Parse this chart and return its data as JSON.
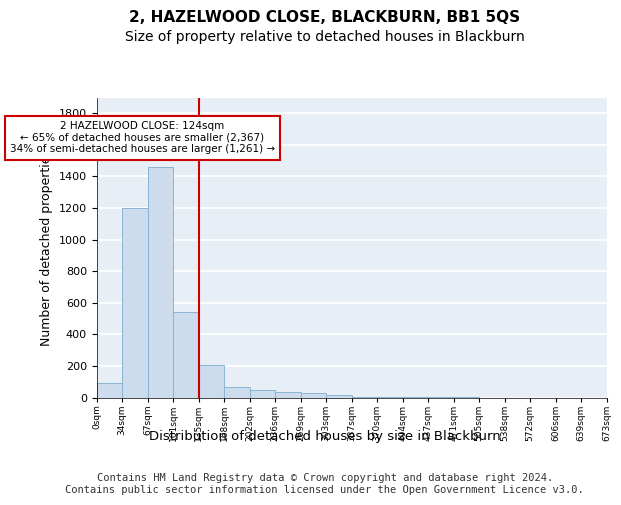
{
  "title": "2, HAZELWOOD CLOSE, BLACKBURN, BB1 5QS",
  "subtitle": "Size of property relative to detached houses in Blackburn",
  "xlabel": "Distribution of detached houses by size in Blackburn",
  "ylabel": "Number of detached properties",
  "bar_color": "#ccdcec",
  "bar_edge_color": "#8ab4d4",
  "background_color": "#e8eef6",
  "grid_color": "#ffffff",
  "vline_x": 4,
  "vline_color": "#cc0000",
  "annotation_text": "2 HAZELWOOD CLOSE: 124sqm\n← 65% of detached houses are smaller (2,367)\n34% of semi-detached houses are larger (1,261) →",
  "annotation_box_color": "#cc0000",
  "bin_labels": [
    "0sqm",
    "34sqm",
    "67sqm",
    "101sqm",
    "135sqm",
    "168sqm",
    "202sqm",
    "236sqm",
    "269sqm",
    "303sqm",
    "337sqm",
    "370sqm",
    "404sqm",
    "437sqm",
    "471sqm",
    "505sqm",
    "538sqm",
    "572sqm",
    "606sqm",
    "639sqm",
    "673sqm"
  ],
  "bar_heights": [
    90,
    1200,
    1460,
    540,
    205,
    65,
    45,
    35,
    28,
    15,
    5,
    3,
    2,
    1,
    1,
    0,
    0,
    0,
    0,
    0
  ],
  "ylim": [
    0,
    1900
  ],
  "yticks": [
    0,
    200,
    400,
    600,
    800,
    1000,
    1200,
    1400,
    1600,
    1800
  ],
  "footer_text": "Contains HM Land Registry data © Crown copyright and database right 2024.\nContains public sector information licensed under the Open Government Licence v3.0.",
  "title_fontsize": 11,
  "subtitle_fontsize": 10,
  "ylabel_fontsize": 9,
  "xlabel_fontsize": 9.5,
  "footer_fontsize": 7.5
}
